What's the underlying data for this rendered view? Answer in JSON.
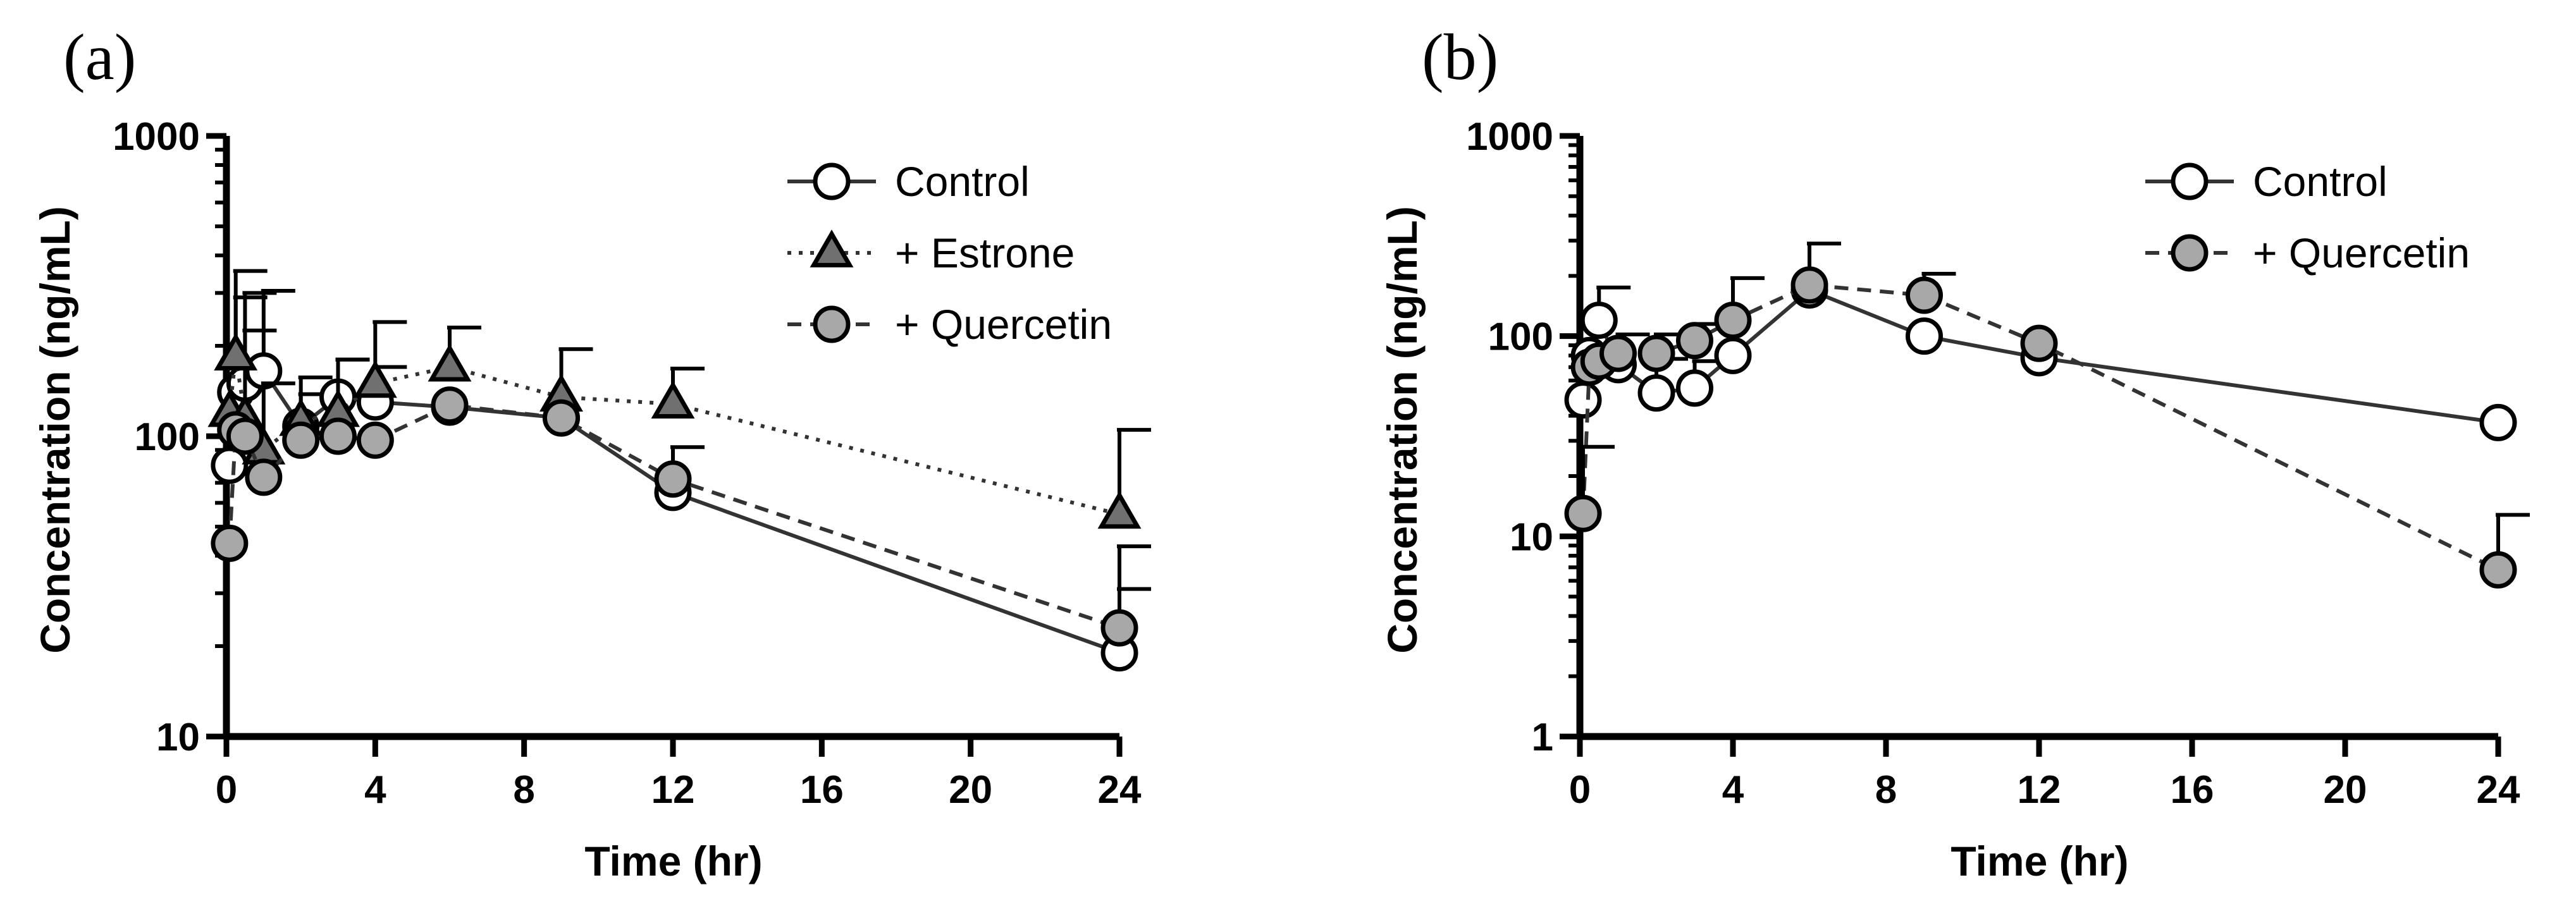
{
  "chart_data": [
    {
      "type": "line",
      "panel_label": "(a)",
      "xlabel": "Time (hr)",
      "ylabel": "Concentration (ng/mL)",
      "xlim": [
        0,
        24
      ],
      "ylim": [
        10,
        1000
      ],
      "yscale": "log",
      "x_ticks": [
        "0",
        "4",
        "8",
        "12",
        "16",
        "20",
        "24"
      ],
      "y_ticks": [
        "10",
        "100",
        "1000"
      ],
      "grid": false,
      "legend_position": "top-right",
      "series": [
        {
          "name": "Control",
          "marker": "circle",
          "marker_fill": "#ffffff",
          "line_style": "solid",
          "x": [
            0.083,
            0.25,
            0.5,
            1,
            2,
            3,
            4,
            6,
            9,
            12,
            24
          ],
          "y": [
            80,
            140,
            150,
            165,
            108,
            135,
            130,
            125,
            115,
            65,
            19
          ],
          "error_plus": [
            0,
            150,
            150,
            140,
            30,
            45,
            40,
            0,
            0,
            0,
            12
          ]
        },
        {
          "name": "+ Estrone",
          "marker": "triangle",
          "marker_fill": "#707070",
          "line_style": "dotted",
          "x": [
            0.083,
            0.25,
            0.5,
            1,
            2,
            3,
            4,
            6,
            9,
            12,
            24
          ],
          "y": [
            120,
            185,
            115,
            90,
            112,
            120,
            150,
            170,
            135,
            128,
            55
          ],
          "error_plus": [
            0,
            170,
            110,
            60,
            45,
            60,
            90,
            60,
            60,
            40,
            50
          ]
        },
        {
          "name": "+ Quercetin",
          "marker": "circle",
          "marker_fill": "#a8a8a8",
          "line_style": "dashed",
          "x": [
            0.083,
            0.25,
            0.5,
            1,
            2,
            3,
            4,
            6,
            9,
            12,
            24
          ],
          "y": [
            44,
            105,
            100,
            73,
            97,
            100,
            97,
            127,
            115,
            72,
            23
          ],
          "error_plus": [
            0,
            0,
            0,
            0,
            0,
            0,
            0,
            0,
            0,
            20,
            20
          ]
        }
      ]
    },
    {
      "type": "line",
      "panel_label": "(b)",
      "xlabel": "Time (hr)",
      "ylabel": "Concentration (ng/mL)",
      "xlim": [
        0,
        24
      ],
      "ylim": [
        1,
        1000
      ],
      "yscale": "log",
      "x_ticks": [
        "0",
        "4",
        "8",
        "12",
        "16",
        "20",
        "24"
      ],
      "y_ticks": [
        "1",
        "10",
        "100",
        "1000"
      ],
      "grid": false,
      "legend_position": "top-right",
      "series": [
        {
          "name": "Control",
          "marker": "circle",
          "marker_fill": "#ffffff",
          "line_style": "solid",
          "x": [
            0.083,
            0.25,
            0.5,
            1,
            2,
            3,
            4,
            6,
            9,
            12,
            24
          ],
          "y": [
            48,
            80,
            120,
            72,
            52,
            55,
            80,
            170,
            100,
            78,
            37
          ],
          "error_plus": [
            0,
            0,
            55,
            30,
            25,
            20,
            0,
            0,
            0,
            0,
            0
          ]
        },
        {
          "name": "+ Quercetin",
          "marker": "circle",
          "marker_fill": "#a8a8a8",
          "line_style": "dashed",
          "x": [
            0.083,
            0.25,
            0.5,
            1,
            2,
            3,
            4,
            6,
            9,
            12,
            24
          ],
          "y": [
            13,
            70,
            75,
            82,
            82,
            95,
            120,
            180,
            160,
            92,
            6.8
          ],
          "error_plus": [
            15,
            0,
            0,
            0,
            20,
            20,
            75,
            110,
            45,
            0,
            6
          ]
        }
      ]
    }
  ]
}
